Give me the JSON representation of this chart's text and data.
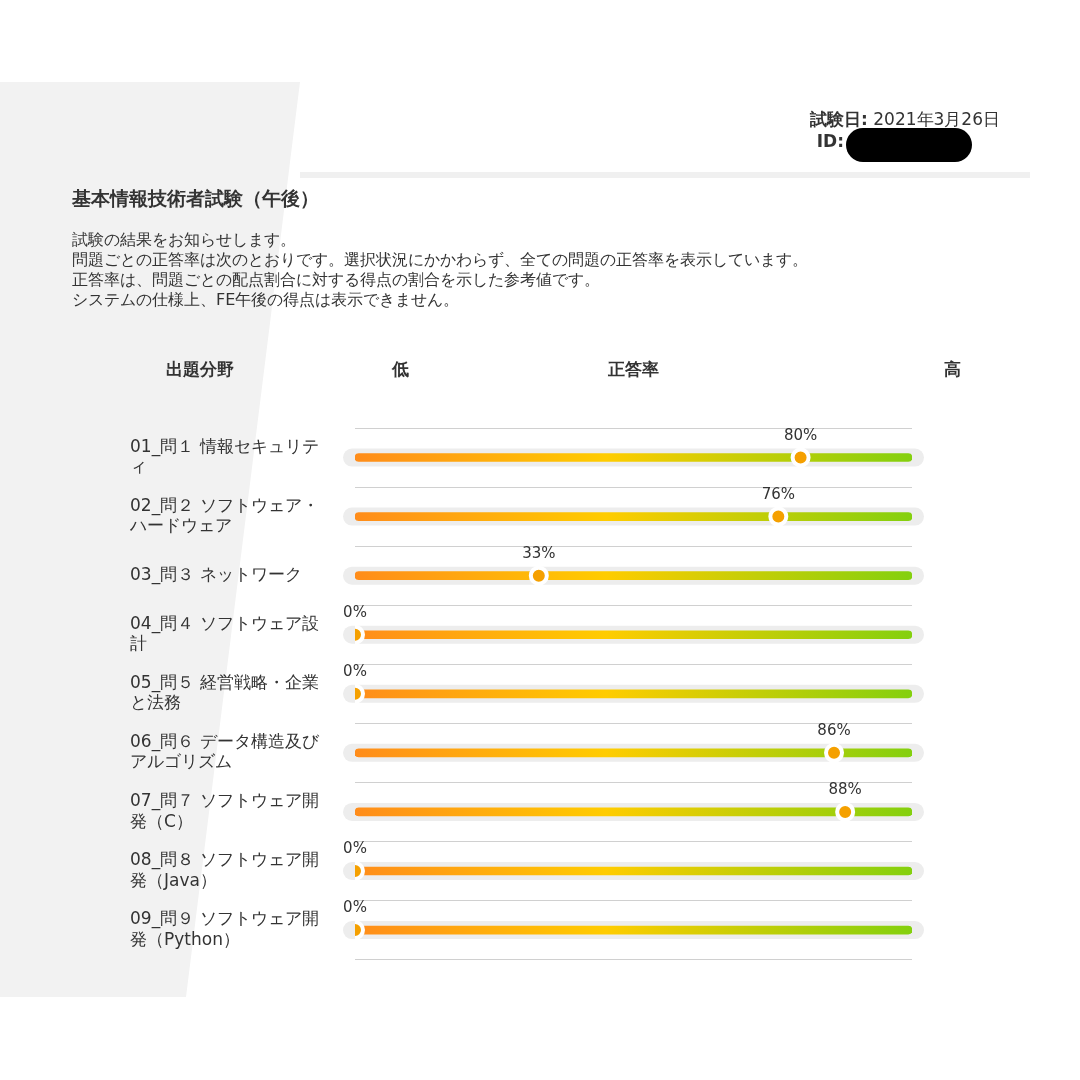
{
  "chart_data": {
    "type": "scatter",
    "title": "基本情報技術者試験（午後）",
    "xlabel": "正答率",
    "ylabel": "出題分野",
    "categories": [
      "01_問１ 情報セキュリティ",
      "02_問２ ソフトウェア・ハードウェア",
      "03_問３ ネットワーク",
      "04_問４ ソフトウェア設計",
      "05_問５ 経営戦略・企業と法務",
      "06_問６ データ構造及びアルゴリズム",
      "07_問７ ソフトウェア開発（C）",
      "08_問８ ソフトウェア開発（Java）",
      "09_問９ ソフトウェア開発（Python）"
    ],
    "series": [
      {
        "type": "bar",
        "color": "#ffcc00",
        "values": [
          100,
          100,
          100,
          100,
          100,
          100,
          100,
          100,
          100
        ]
      },
      {
        "color": "#f5a000",
        "values": [
          80,
          76,
          33,
          0,
          0,
          86,
          88,
          0,
          0
        ],
        "value_labels": [
          "80%",
          "76%",
          "33%",
          "0%",
          "0%",
          "86%",
          "88%",
          "0%",
          "0%"
        ]
      }
    ],
    "marker": "circle",
    "orientation": "horizontal",
    "xlim": [
      0,
      100
    ],
    "tick_labels": "y",
    "grid": "y",
    "annotations": [
      "試験日: 2021年3月26日",
      "ID:",
      "試験の結果をお知らせします。",
      "問題ごとの正答率は次のとおりです。選択状況にかかわらず、全ての問題の正答率を表示しています。",
      "正答率は、問題ごとの配点割合に対する得点の割合を示した参考値です。",
      "システムの仕様上、FE午後の得点は表示できません。",
      "低",
      "高"
    ]
  }
}
